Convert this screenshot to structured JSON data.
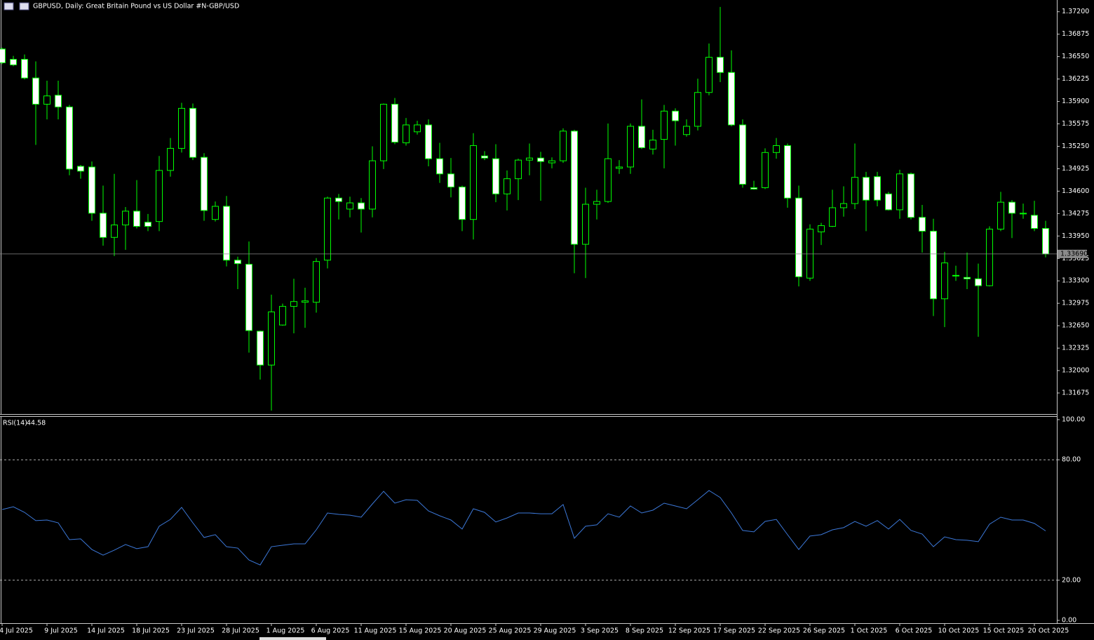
{
  "chart_data": [
    {
      "type": "candlestick",
      "title": "GBPUSD, Daily:  Great Britain Pound vs US Dollar #N-GBP/USD",
      "x": [
        "4 Jul 2025",
        null,
        null,
        null,
        "9 Jul 2025",
        null,
        null,
        null,
        "14 Jul 2025",
        null,
        null,
        null,
        "18 Jul 2025",
        null,
        null,
        null,
        "23 Jul 2025",
        null,
        null,
        null,
        "28 Jul 2025",
        null,
        null,
        null,
        "1 Aug 2025",
        null,
        null,
        null,
        "6 Aug 2025",
        null,
        null,
        null,
        "11 Aug 2025",
        null,
        null,
        null,
        "15 Aug 2025",
        null,
        null,
        null,
        "20 Aug 2025",
        null,
        null,
        null,
        "25 Aug 2025",
        null,
        null,
        null,
        "29 Aug 2025",
        null,
        null,
        null,
        "3 Sep 2025",
        null,
        null,
        null,
        "8 Sep 2025",
        null,
        null,
        null,
        "12 Sep 2025",
        null,
        null,
        null,
        "17 Sep 2025",
        null,
        null,
        null,
        "22 Sep 2025",
        null,
        null,
        null,
        "26 Sep 2025",
        null,
        null,
        null,
        "1 Oct 2025",
        null,
        null,
        null,
        "6 Oct 2025",
        null,
        null,
        null,
        "10 Oct 2025",
        null,
        null,
        null,
        "15 Oct 2025",
        null,
        null,
        null,
        "20 Oct 2025",
        null
      ],
      "open": [
        1.3666,
        1.3651,
        1.3651,
        1.3624,
        1.3586,
        1.3599,
        1.3582,
        1.3496,
        1.3495,
        1.3428,
        1.3393,
        1.3411,
        1.3431,
        1.3415,
        1.3416,
        1.349,
        1.3522,
        1.358,
        1.3509,
        1.3419,
        1.3438,
        1.336,
        1.3354,
        1.3257,
        1.3208,
        1.3266,
        1.3293,
        1.3299,
        1.3299,
        1.336,
        1.345,
        1.3434,
        1.3443,
        1.3434,
        1.3504,
        1.3586,
        1.353,
        1.3546,
        1.3556,
        1.3507,
        1.3485,
        1.3466,
        1.3419,
        1.3511,
        1.3507,
        1.3456,
        1.3478,
        1.3505,
        1.3508,
        1.3501,
        1.3504,
        1.3547,
        1.3383,
        1.3441,
        1.3445,
        1.3493,
        1.3495,
        1.3554,
        1.3521,
        1.3535,
        1.3576,
        1.3542,
        1.3554,
        1.3603,
        1.3654,
        1.3632,
        1.3556,
        1.3465,
        1.3465,
        1.3516,
        1.3526,
        1.345,
        1.3334,
        1.3401,
        1.3409,
        1.3436,
        1.3442,
        1.348,
        1.3481,
        1.3456,
        1.3433,
        1.3485,
        1.3422,
        1.3402,
        1.3304,
        1.3337,
        1.3335,
        1.3333,
        1.3323,
        1.3405,
        1.3444,
        1.3427,
        1.3425,
        1.3406
      ],
      "high": [
        1.3668,
        1.3656,
        1.3658,
        1.3648,
        1.362,
        1.362,
        1.3585,
        1.3498,
        1.3503,
        1.3468,
        1.3485,
        1.3437,
        1.3476,
        1.3427,
        1.3511,
        1.3537,
        1.3588,
        1.3587,
        1.3515,
        1.3445,
        1.3453,
        1.3365,
        1.3387,
        1.3258,
        1.331,
        1.3297,
        1.3333,
        1.332,
        1.3363,
        1.3452,
        1.3456,
        1.3452,
        1.345,
        1.3525,
        1.3587,
        1.3595,
        1.3566,
        1.3562,
        1.3564,
        1.353,
        1.3508,
        1.3468,
        1.3544,
        1.3518,
        1.3528,
        1.349,
        1.3507,
        1.3529,
        1.3517,
        1.3509,
        1.3551,
        1.3549,
        1.3465,
        1.3462,
        1.3558,
        1.3505,
        1.3558,
        1.3593,
        1.3549,
        1.3585,
        1.358,
        1.3564,
        1.3623,
        1.3674,
        1.3727,
        1.3664,
        1.3564,
        1.3475,
        1.3522,
        1.3537,
        1.3529,
        1.3468,
        1.3412,
        1.3414,
        1.3462,
        1.3467,
        1.3529,
        1.3488,
        1.3488,
        1.3459,
        1.3491,
        1.3487,
        1.344,
        1.342,
        1.3372,
        1.3352,
        1.3371,
        1.3355,
        1.3409,
        1.3459,
        1.3447,
        1.3442,
        1.3446,
        1.3417
      ],
      "low": [
        1.3644,
        1.3641,
        1.3622,
        1.3527,
        1.3564,
        1.3564,
        1.3483,
        1.3478,
        1.3417,
        1.3381,
        1.3366,
        1.3375,
        1.3406,
        1.3402,
        1.3402,
        1.3481,
        1.3516,
        1.3505,
        1.3417,
        1.3416,
        1.3351,
        1.3318,
        1.3226,
        1.3187,
        1.3142,
        1.3265,
        1.3254,
        1.3262,
        1.3284,
        1.3348,
        1.3419,
        1.3422,
        1.34,
        1.3422,
        1.3492,
        1.3528,
        1.3526,
        1.3542,
        1.3496,
        1.3472,
        1.3451,
        1.3402,
        1.339,
        1.3505,
        1.3444,
        1.3432,
        1.3447,
        1.3483,
        1.3446,
        1.3493,
        1.3501,
        1.3341,
        1.3334,
        1.3419,
        1.3443,
        1.3485,
        1.3485,
        1.3521,
        1.3513,
        1.3493,
        1.3526,
        1.3539,
        1.3548,
        1.3599,
        1.3618,
        1.3554,
        1.3465,
        1.3462,
        1.3463,
        1.3507,
        1.3436,
        1.3322,
        1.333,
        1.3382,
        1.3408,
        1.3423,
        1.3434,
        1.3402,
        1.3438,
        1.3432,
        1.342,
        1.3419,
        1.3371,
        1.3279,
        1.3263,
        1.333,
        1.3318,
        1.3249,
        1.3322,
        1.3402,
        1.3392,
        1.342,
        1.3402,
        1.3364
      ],
      "close": [
        1.3646,
        1.3643,
        1.3624,
        1.3586,
        1.3598,
        1.3582,
        1.3492,
        1.3489,
        1.3428,
        1.3393,
        1.3411,
        1.3431,
        1.3409,
        1.3409,
        1.349,
        1.3522,
        1.358,
        1.3509,
        1.3432,
        1.3438,
        1.336,
        1.3355,
        1.3258,
        1.3208,
        1.3285,
        1.3293,
        1.33,
        1.3301,
        1.3358,
        1.345,
        1.3445,
        1.3443,
        1.3434,
        1.3504,
        1.3586,
        1.3531,
        1.3556,
        1.3556,
        1.3507,
        1.3485,
        1.3466,
        1.3419,
        1.3526,
        1.3508,
        1.3456,
        1.3478,
        1.3505,
        1.3508,
        1.3503,
        1.3504,
        1.3547,
        1.3383,
        1.3441,
        1.3445,
        1.3507,
        1.3495,
        1.3554,
        1.3523,
        1.3534,
        1.3576,
        1.3562,
        1.3554,
        1.3603,
        1.3654,
        1.3632,
        1.3556,
        1.347,
        1.3463,
        1.3516,
        1.3526,
        1.345,
        1.3336,
        1.3405,
        1.341,
        1.3436,
        1.3442,
        1.348,
        1.3447,
        1.3447,
        1.3433,
        1.3485,
        1.3422,
        1.3402,
        1.3304,
        1.3356,
        1.3338,
        1.3333,
        1.3323,
        1.3405,
        1.3444,
        1.3428,
        1.3428,
        1.3406,
        1.3369
      ],
      "color": "#00ff00",
      "bull_fill": "#000000",
      "bear_fill": "#ffffff",
      "ylim": [
        1.3137,
        1.3737
      ],
      "yticks": [
        {
          "value": 1.372,
          "label": "1.37200"
        },
        {
          "value": 1.36875,
          "label": "1.36875"
        },
        {
          "value": 1.3655,
          "label": "1.36550"
        },
        {
          "value": 1.36225,
          "label": "1.36225"
        },
        {
          "value": 1.359,
          "label": "1.35900"
        },
        {
          "value": 1.35575,
          "label": "1.35575"
        },
        {
          "value": 1.3525,
          "label": "1.35250"
        },
        {
          "value": 1.34925,
          "label": "1.34925"
        },
        {
          "value": 1.346,
          "label": "1.34600"
        },
        {
          "value": 1.34275,
          "label": "1.34275"
        },
        {
          "value": 1.3395,
          "label": "1.33950"
        },
        {
          "value": 1.33625,
          "label": "1.33625"
        },
        {
          "value": 1.333,
          "label": "1.33300"
        },
        {
          "value": 1.32975,
          "label": "1.32975"
        },
        {
          "value": 1.3265,
          "label": "1.32650"
        },
        {
          "value": 1.32325,
          "label": "1.32325"
        },
        {
          "value": 1.32,
          "label": "1.32000"
        },
        {
          "value": 1.31675,
          "label": "1.31675"
        }
      ],
      "current_price": {
        "value": 1.3369,
        "label": "1.33690"
      }
    },
    {
      "type": "line",
      "title": "RSI(14)",
      "series": [
        {
          "name": "RSI(14)",
          "color": "#3c78d8",
          "values": [
            55.2,
            56.6,
            53.8,
            49.7,
            50.0,
            48.6,
            40.2,
            40.6,
            35.3,
            32.5,
            35.0,
            37.8,
            35.7,
            36.7,
            46.9,
            50.3,
            56.3,
            48.6,
            41.3,
            42.7,
            36.7,
            36.0,
            30.1,
            27.6,
            36.7,
            37.4,
            38.1,
            38.1,
            45.1,
            53.5,
            52.8,
            52.4,
            51.4,
            58.0,
            64.3,
            58.4,
            60.1,
            59.8,
            54.5,
            52.1,
            50.0,
            45.5,
            55.6,
            53.8,
            49.0,
            51.0,
            53.5,
            53.5,
            53.1,
            53.1,
            57.7,
            40.9,
            46.9,
            47.6,
            53.1,
            51.4,
            57.0,
            53.5,
            54.9,
            58.4,
            57.0,
            55.6,
            60.1,
            64.7,
            61.2,
            53.5,
            44.8,
            44.1,
            49.3,
            50.3,
            42.7,
            35.3,
            42.0,
            42.7,
            45.1,
            46.2,
            49.3,
            46.9,
            49.7,
            45.5,
            50.3,
            44.8,
            43.0,
            36.7,
            41.6,
            40.2,
            39.9,
            39.2,
            47.9,
            51.4,
            50.0,
            50.0,
            48.3,
            44.58
          ]
        }
      ],
      "ylim": [
        0,
        100
      ],
      "yticks": [
        {
          "value": 100,
          "label": "100.00"
        },
        {
          "value": 80,
          "label": "80.00"
        },
        {
          "value": 20,
          "label": "20.00"
        },
        {
          "value": 0,
          "label": "0.00"
        }
      ]
    }
  ]
}
